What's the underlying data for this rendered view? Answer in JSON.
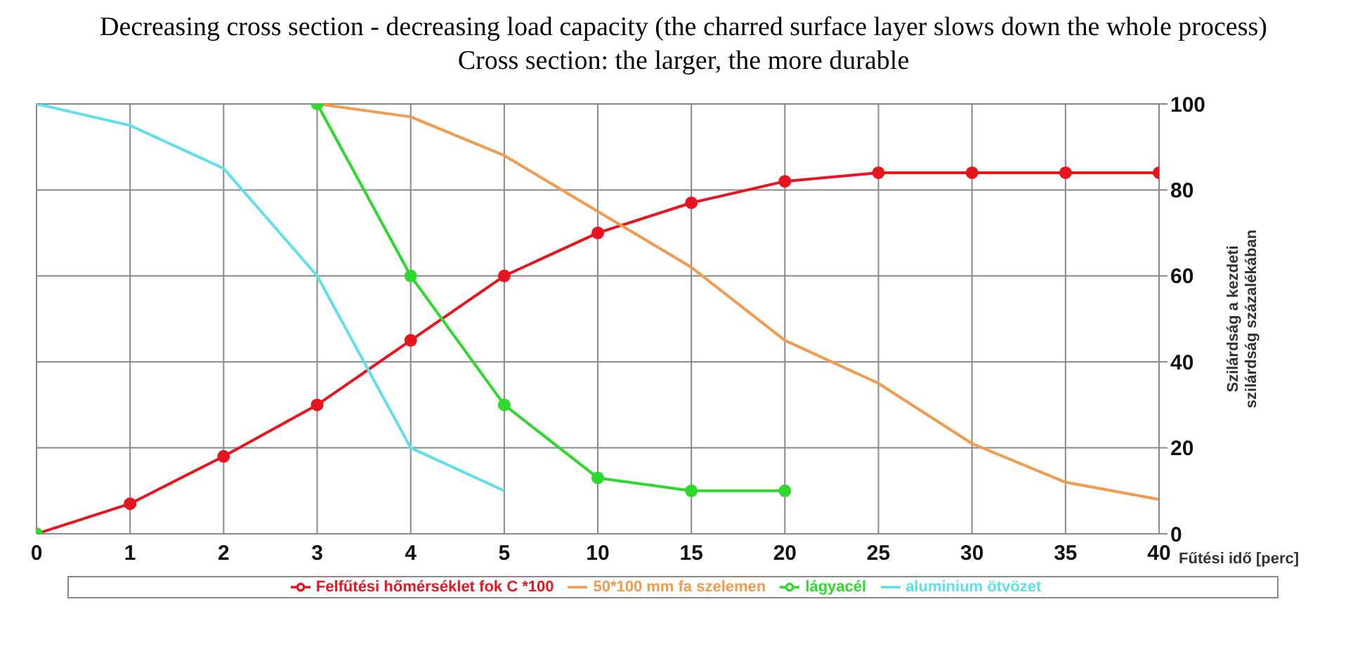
{
  "chart_data": {
    "type": "line",
    "title": "Decreasing cross section - decreasing load capacity (the charred surface layer slows down the whole process)",
    "subtitle": "Cross section: the larger, the more durable",
    "xlabel": "Fűtési idő [perc]",
    "ylabel": "Szilárdság a kezdeti szilárdság százalékában",
    "categories": [
      "0",
      "1",
      "2",
      "3",
      "4",
      "5",
      "10",
      "15",
      "20",
      "25",
      "30",
      "35",
      "40"
    ],
    "series": [
      {
        "name": "Felfűtési hőmérséklet fok C *100",
        "color": "#e8141e",
        "marker": "circle",
        "values": [
          0,
          7,
          18,
          30,
          45,
          60,
          70,
          77,
          82,
          84,
          84,
          84,
          84
        ]
      },
      {
        "name": "50*100 mm fa szelemen",
        "color": "#f39a4c",
        "marker": "none",
        "values": [
          null,
          null,
          null,
          100,
          97,
          88,
          75,
          62,
          45,
          35,
          21,
          12,
          8
        ]
      },
      {
        "name": "lágyacél",
        "color": "#2ed92e",
        "marker": "circle",
        "values": [
          0,
          null,
          null,
          100,
          60,
          30,
          13,
          10,
          10,
          null,
          null,
          null,
          null
        ]
      },
      {
        "name": "aluminium ötvözet",
        "color": "#5ee0ea",
        "marker": "none",
        "values": [
          100,
          95,
          85,
          60,
          20,
          10,
          null,
          null,
          null,
          null,
          null,
          null,
          null
        ]
      }
    ],
    "ylim": [
      0,
      100
    ],
    "yticks": [
      0,
      20,
      40,
      60,
      80,
      100
    ],
    "grid": true,
    "legend": "bottom",
    "line_style": "solid"
  }
}
